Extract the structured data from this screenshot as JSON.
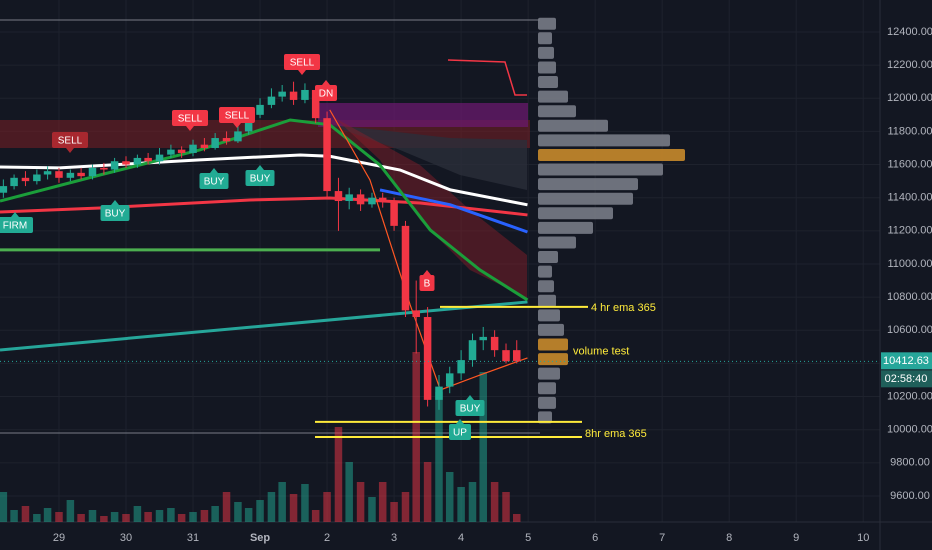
{
  "chart_data": {
    "type": "candlestick",
    "candles": {
      "x": [
        -0.83,
        -0.67,
        -0.5,
        -0.33,
        -0.17,
        0,
        0.17,
        0.33,
        0.5,
        0.67,
        0.83,
        1,
        1.17,
        1.33,
        1.5,
        1.67,
        1.83,
        2,
        2.17,
        2.33,
        2.5,
        2.67,
        2.83,
        3,
        3.17,
        3.33,
        3.5,
        3.67,
        3.83,
        4,
        4.17,
        4.33,
        4.5,
        4.67,
        4.83,
        5,
        5.17,
        5.33,
        5.5,
        5.67,
        5.83,
        6,
        6.17,
        6.33,
        6.5,
        6.67,
        6.83
      ],
      "open": [
        11430,
        11470,
        11520,
        11500,
        11540,
        11560,
        11520,
        11550,
        11530,
        11580,
        11570,
        11620,
        11600,
        11640,
        11620,
        11660,
        11690,
        11670,
        11720,
        11700,
        11760,
        11740,
        11800,
        11900,
        11960,
        12010,
        12040,
        11990,
        12050,
        11880,
        11440,
        11380,
        11420,
        11360,
        11400,
        11380,
        11230,
        10720,
        10680,
        10180,
        10260,
        10340,
        10420,
        10540,
        10560,
        10480,
        10480
      ],
      "close": [
        11470,
        11520,
        11500,
        11540,
        11560,
        11520,
        11550,
        11530,
        11580,
        11570,
        11620,
        11600,
        11640,
        11620,
        11660,
        11690,
        11670,
        11720,
        11700,
        11760,
        11740,
        11800,
        11900,
        11960,
        12010,
        12040,
        11990,
        12050,
        11880,
        11440,
        11380,
        11420,
        11360,
        11400,
        11380,
        11230,
        10720,
        10680,
        10180,
        10260,
        10340,
        10420,
        10540,
        10560,
        10480,
        10413,
        10413
      ],
      "high": [
        11510,
        11540,
        11560,
        11570,
        11590,
        11580,
        11570,
        11580,
        11600,
        11610,
        11640,
        11650,
        11660,
        11670,
        11700,
        11720,
        11710,
        11750,
        11760,
        11790,
        11800,
        11850,
        11930,
        12000,
        12060,
        12080,
        12100,
        12090,
        12070,
        11920,
        11520,
        11460,
        11450,
        11430,
        11430,
        11400,
        11260,
        10900,
        10740,
        10330,
        10380,
        10480,
        10580,
        10620,
        10600,
        10520,
        10540
      ],
      "low": [
        11400,
        11450,
        11470,
        11480,
        11510,
        11490,
        11500,
        11510,
        11510,
        11540,
        11550,
        11580,
        11580,
        11600,
        11600,
        11640,
        11640,
        11650,
        11680,
        11690,
        11720,
        11730,
        11780,
        11880,
        11940,
        11980,
        11960,
        11970,
        11850,
        11400,
        11200,
        11330,
        11320,
        11340,
        11340,
        11200,
        10680,
        10460,
        10140,
        10120,
        10220,
        10300,
        10380,
        10480,
        10440,
        10400,
        10400
      ],
      "volume": [
        30,
        12,
        16,
        8,
        14,
        10,
        22,
        8,
        12,
        6,
        10,
        8,
        16,
        10,
        12,
        14,
        8,
        10,
        12,
        16,
        30,
        20,
        14,
        22,
        30,
        40,
        28,
        38,
        12,
        30,
        95,
        60,
        40,
        25,
        40,
        20,
        30,
        170,
        60,
        130,
        50,
        35,
        40,
        150,
        40,
        30,
        8
      ],
      "up_color": "#22ab94",
      "down_color": "#f23645"
    },
    "volume_lim": [
      0,
      180
    ],
    "indicators": [
      {
        "color": "#4caf50",
        "x": [
          -0.88,
          4.79
        ],
        "values": [
          11085,
          11085
        ]
      },
      {
        "color": "#26a69a",
        "x": [
          -0.88,
          6.99
        ],
        "values": [
          10481,
          10771
        ]
      },
      {
        "color": "#f23645",
        "x": [
          -0.88,
          0.61,
          2.85,
          4.04,
          5.39,
          6.99
        ],
        "values": [
          11314,
          11338,
          11386,
          11398,
          11368,
          11296
        ]
      },
      {
        "color": "#2962ff",
        "x": [
          4.79,
          5.84,
          6.99
        ],
        "values": [
          11447,
          11357,
          11193
        ]
      },
      {
        "color": "#ffffff",
        "x": [
          -0.88,
          0.01,
          2.1,
          3.6,
          4.04,
          5.09,
          5.84,
          6.99
        ],
        "values": [
          11585,
          11580,
          11628,
          11658,
          11650,
          11567,
          11447,
          11357
        ]
      },
      {
        "color": "#1b9e3a",
        "x": [
          -0.88,
          0.61,
          2.1,
          3.45,
          4.04,
          4.79,
          5.54,
          6.28,
          6.99
        ],
        "values": [
          11380,
          11537,
          11688,
          11869,
          11840,
          11597,
          11205,
          10964,
          10783
        ]
      },
      {
        "color": "#ff5722",
        "x": [
          4.04,
          4.64,
          5.24,
          5.69,
          6.28,
          6.99
        ],
        "values": [
          11930,
          11507,
          10753,
          10240,
          10330,
          10433
        ]
      }
    ],
    "hlines": [
      12472,
      9980
    ],
    "levels": [
      {
        "label": "4 hr ema 365",
        "value": 10741
      },
      {
        "label": "8hr ema 365",
        "value": 9956
      }
    ],
    "extra_level": 10047,
    "annotation": {
      "label": "volume test",
      "value": 10470
    },
    "signals": [
      "SELL",
      "SELL",
      "SELL",
      "SELL",
      "DN",
      "BUY",
      "BUY",
      "BUY",
      "FIRM",
      "B",
      "BUY",
      "UP"
    ],
    "profile": {
      "prices": [
        12450,
        12362,
        12274,
        12186,
        12098,
        12010,
        11922,
        11834,
        11746,
        11658,
        11570,
        11482,
        11394,
        11306,
        11218,
        11130,
        11042,
        10954,
        10866,
        10778,
        10690,
        10602,
        10514,
        10426,
        10338,
        10250,
        10162,
        10074
      ],
      "values": [
        18,
        14,
        16,
        18,
        20,
        30,
        38,
        70,
        132,
        147,
        125,
        100,
        95,
        75,
        55,
        38,
        20,
        14,
        16,
        18,
        22,
        26,
        30,
        30,
        22,
        18,
        18,
        14
      ],
      "colors": [
        "#787b86",
        "#787b86",
        "#787b86",
        "#787b86",
        "#787b86",
        "#787b86",
        "#787b86",
        "#787b86",
        "#787b86",
        "#c88a2b",
        "#787b86",
        "#787b86",
        "#787b86",
        "#787b86",
        "#787b86",
        "#787b86",
        "#787b86",
        "#787b86",
        "#787b86",
        "#787b86",
        "#787b86",
        "#787b86",
        "#c88a2b",
        "#c88a2b",
        "#787b86",
        "#787b86",
        "#787b86",
        "#787b86"
      ]
    },
    "last_price": 10412.63,
    "countdown": "02:58:40",
    "ylim": [
      9443,
      12593
    ],
    "yticks": [
      {
        "value": 9600,
        "label": "9600.00"
      },
      {
        "value": 9800,
        "label": "9800.00"
      },
      {
        "value": 10000,
        "label": "10000.00"
      },
      {
        "value": 10200,
        "label": "10200.00"
      },
      {
        "value": 10400,
        "label": "10400.00"
      },
      {
        "value": 10600,
        "label": "10600.00"
      },
      {
        "value": 10800,
        "label": "10800.00"
      },
      {
        "value": 11000,
        "label": "11000.00"
      },
      {
        "value": 11200,
        "label": "11200.00"
      },
      {
        "value": 11400,
        "label": "11400.00"
      },
      {
        "value": 11600,
        "label": "11600.00"
      },
      {
        "value": 11800,
        "label": "11800.00"
      },
      {
        "value": 12000,
        "label": "12000.00"
      },
      {
        "value": 12200,
        "label": "12200.00"
      },
      {
        "value": 12400,
        "label": "12400.00"
      }
    ],
    "xlim": [
      -0.88,
      12.25
    ],
    "xticks": [
      {
        "value": 0,
        "label": "29"
      },
      {
        "value": 1,
        "label": "30"
      },
      {
        "value": 2,
        "label": "31"
      },
      {
        "value": 3,
        "label": "Sep"
      },
      {
        "value": 4,
        "label": "2"
      },
      {
        "value": 5,
        "label": "3"
      },
      {
        "value": 6,
        "label": "4"
      },
      {
        "value": 7,
        "label": "5"
      },
      {
        "value": 8,
        "label": "6"
      },
      {
        "value": 9,
        "label": "7"
      },
      {
        "value": 10,
        "label": "8"
      },
      {
        "value": 11,
        "label": "9"
      },
      {
        "value": 12,
        "label": "10"
      }
    ],
    "grid": true
  }
}
